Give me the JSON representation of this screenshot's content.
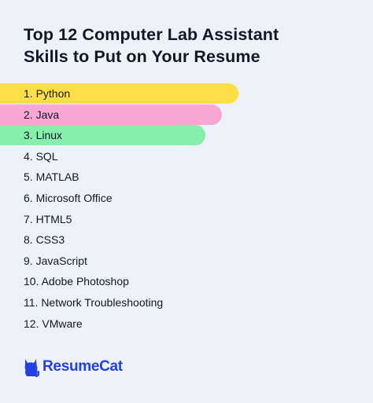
{
  "title_lines": [
    "Top 12 Computer Lab Assistant",
    "Skills to Put on Your Resume"
  ],
  "skills": [
    {
      "label": "1. Python",
      "highlight": "#fde047",
      "bar_fraction": 0.64
    },
    {
      "label": "2. Java",
      "highlight": "#f9a8d4",
      "bar_fraction": 0.595
    },
    {
      "label": "3. Linux",
      "highlight": "#86efac",
      "bar_fraction": 0.55
    },
    {
      "label": "4. SQL"
    },
    {
      "label": "5. MATLAB"
    },
    {
      "label": "6. Microsoft Office"
    },
    {
      "label": "7. HTML5"
    },
    {
      "label": "8. CSS3"
    },
    {
      "label": "9. JavaScript"
    },
    {
      "label": "10. Adobe Photoshop"
    },
    {
      "label": "11. Network Troubleshooting"
    },
    {
      "label": "12. VMware"
    }
  ],
  "brand": {
    "name": "ResumeCat",
    "icon": "cat-icon",
    "color": "#2340e6"
  },
  "colors": {
    "background": "#eef1f7",
    "text": "#111827"
  }
}
